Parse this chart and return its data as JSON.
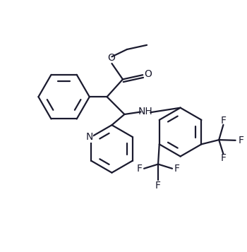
{
  "bg_color": "#ffffff",
  "line_color": "#1a1a2e",
  "line_width": 1.6,
  "font_size": 10,
  "fig_width": 3.5,
  "fig_height": 3.57,
  "dpi": 100,
  "xlim": [
    0,
    10
  ],
  "ylim": [
    0,
    10
  ]
}
